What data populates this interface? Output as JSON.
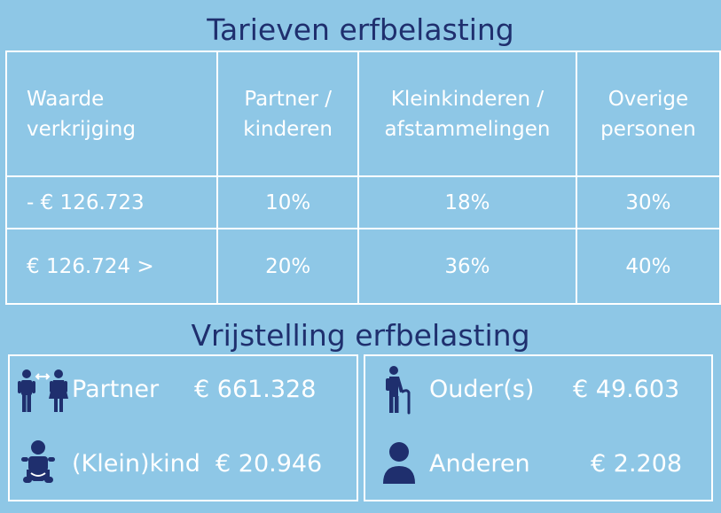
{
  "rates_title": "Tarieven erfbelasting",
  "rates_table": {
    "headers": [
      [
        "Waarde",
        "verkrijging"
      ],
      [
        "Partner /",
        "kinderen"
      ],
      [
        "Kleinkinderen /",
        "afstammelingen"
      ],
      [
        "Overige",
        "personen"
      ]
    ],
    "rows": [
      [
        "- € 126.723",
        "10%",
        "18%",
        "30%"
      ],
      [
        "€ 126.724 >",
        "20%",
        "36%",
        "40%"
      ]
    ]
  },
  "exemptions_title": "Vrijstelling erfbelasting",
  "exemptions": {
    "left": [
      {
        "label": "Partner",
        "value": "€ 661.328",
        "icon": "couple-icon"
      },
      {
        "label": "(Klein)kind",
        "value": "€ 20.946",
        "icon": "baby-icon"
      }
    ],
    "right": [
      {
        "label": "Ouder(s)",
        "value": "€ 49.603",
        "icon": "elderly-person-icon"
      },
      {
        "label": "Anderen",
        "value": "€ 2.208",
        "icon": "person-icon"
      }
    ]
  },
  "colors": {
    "background": "#8ec7e6",
    "title": "#1f2f6e",
    "icon": "#1f2f6e",
    "text": "#ffffff"
  }
}
